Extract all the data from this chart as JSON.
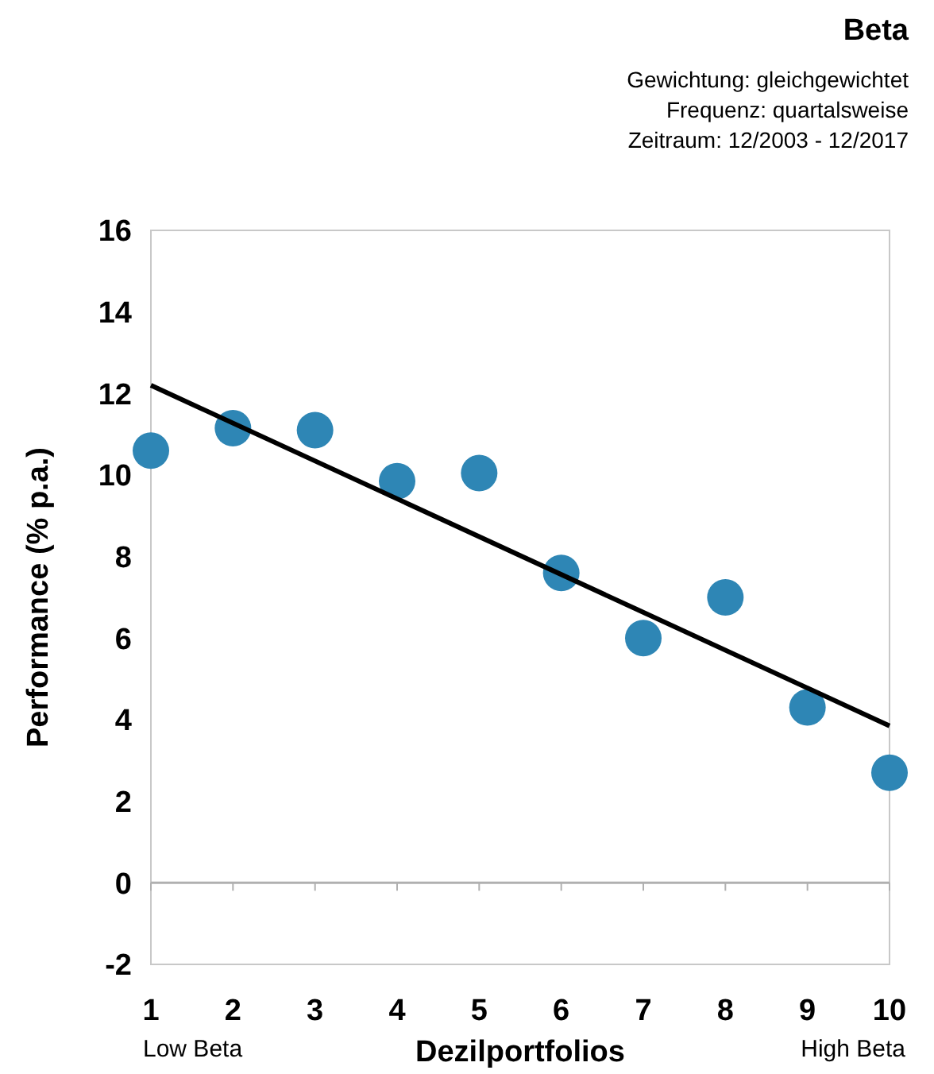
{
  "chart_data": {
    "type": "scatter",
    "title": "Beta",
    "subtitle": "Gewichtung: gleichgewichtet\nFrequenz: quartalsweise\nZeitraum: 12/2003 - 12/2017",
    "xlabel": "Dezilportfolios",
    "ylabel": "Performance (% p.a.)",
    "x": [
      1,
      2,
      3,
      4,
      5,
      6,
      7,
      8,
      9,
      10
    ],
    "series": [
      {
        "color": "#2e86b5",
        "marker": "circle",
        "values": [
          10.6,
          11.15,
          11.1,
          9.85,
          10.05,
          7.6,
          6.0,
          7.0,
          4.3,
          2.7
        ]
      },
      {
        "type": "line",
        "color": "#000000",
        "x": [
          1,
          10
        ],
        "values": [
          12.2,
          3.85
        ]
      }
    ],
    "xlim": [
      1,
      10
    ],
    "xticks": [
      1,
      2,
      3,
      4,
      5,
      6,
      7,
      8,
      9,
      10
    ],
    "ylim": [
      -2,
      16
    ],
    "yticks": [
      -2,
      0,
      2,
      4,
      6,
      8,
      10,
      12,
      14,
      16
    ],
    "annotations": [
      "Low Beta",
      "High Beta"
    ]
  }
}
